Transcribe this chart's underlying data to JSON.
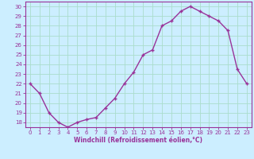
{
  "x": [
    0,
    1,
    2,
    3,
    4,
    5,
    6,
    7,
    8,
    9,
    10,
    11,
    12,
    13,
    14,
    15,
    16,
    17,
    18,
    19,
    20,
    21,
    22,
    23
  ],
  "y": [
    22,
    21,
    19,
    18,
    17.5,
    18,
    18.3,
    18.5,
    19.5,
    20.5,
    22,
    23.2,
    25,
    25.5,
    28,
    28.5,
    29.5,
    30,
    29.5,
    29,
    28.5,
    27.5,
    23.5,
    22
  ],
  "line_color": "#993399",
  "marker": "+",
  "marker_size": 3,
  "marker_lw": 1.0,
  "bg_color": "#cceeff",
  "grid_color": "#aaddcc",
  "xlabel": "Windchill (Refroidissement éolien,°C)",
  "xlabel_color": "#993399",
  "tick_color": "#993399",
  "ylim": [
    17.5,
    30.5
  ],
  "xlim": [
    -0.5,
    23.5
  ],
  "yticks": [
    18,
    19,
    20,
    21,
    22,
    23,
    24,
    25,
    26,
    27,
    28,
    29,
    30
  ],
  "xticks": [
    0,
    1,
    2,
    3,
    4,
    5,
    6,
    7,
    8,
    9,
    10,
    11,
    12,
    13,
    14,
    15,
    16,
    17,
    18,
    19,
    20,
    21,
    22,
    23
  ],
  "spine_color": "#993399",
  "line_width": 1.0
}
